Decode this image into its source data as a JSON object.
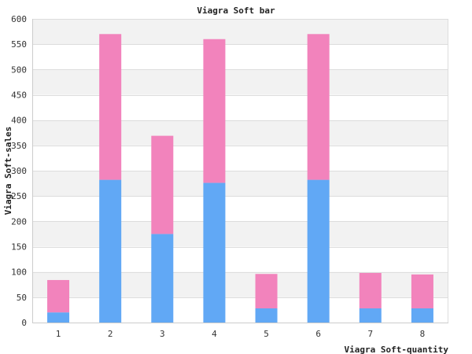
{
  "chart_data": {
    "type": "bar",
    "stacked": true,
    "title": "Viagra Soft bar",
    "xlabel": "Viagra Soft-quantity",
    "ylabel": "Viagra Soft-sales",
    "categories": [
      "1",
      "2",
      "3",
      "4",
      "5",
      "6",
      "7",
      "8"
    ],
    "ylim": [
      0,
      600
    ],
    "yticks": [
      0,
      50,
      100,
      150,
      200,
      250,
      300,
      350,
      400,
      450,
      500,
      550,
      600
    ],
    "grid": true,
    "legend": "none",
    "series": [
      {
        "color": "#61a8f5",
        "values": [
          20,
          282,
          175,
          276,
          28,
          282,
          28,
          28
        ]
      },
      {
        "color": "#f283bc",
        "values": [
          64,
          288,
          194,
          284,
          68,
          288,
          70,
          67
        ]
      }
    ],
    "colors": {
      "band": "#f2f2f2",
      "gridline": "#dddddd",
      "axis": "#cccccc"
    }
  }
}
